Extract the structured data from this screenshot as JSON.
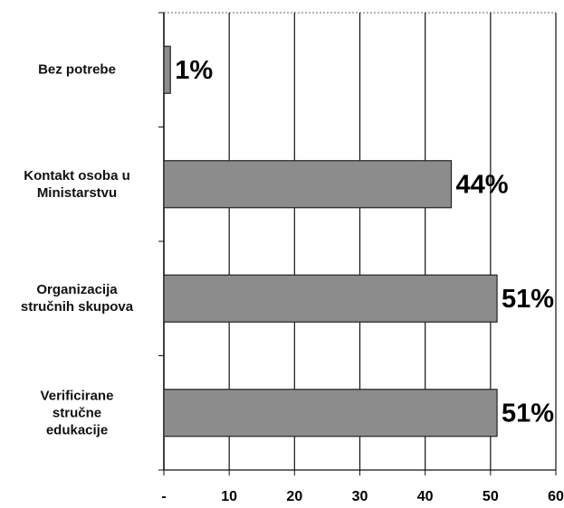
{
  "chart_data": {
    "type": "bar",
    "orientation": "horizontal",
    "categories": [
      "Bez potrebe",
      "Kontakt osoba u\nMinistarstvu",
      "Organizacija\nstručnih skupova",
      "Verificirane\nstručne\nedukacije"
    ],
    "values": [
      1,
      44,
      51,
      51
    ],
    "value_labels": [
      "1%",
      "44%",
      "51%",
      "51%"
    ],
    "color": "#8c8c8c",
    "xlim": [
      0,
      60
    ],
    "xticks": [
      {
        "value": 0,
        "label": "-"
      },
      10,
      20,
      30,
      40,
      50,
      60
    ],
    "grid": true
  }
}
